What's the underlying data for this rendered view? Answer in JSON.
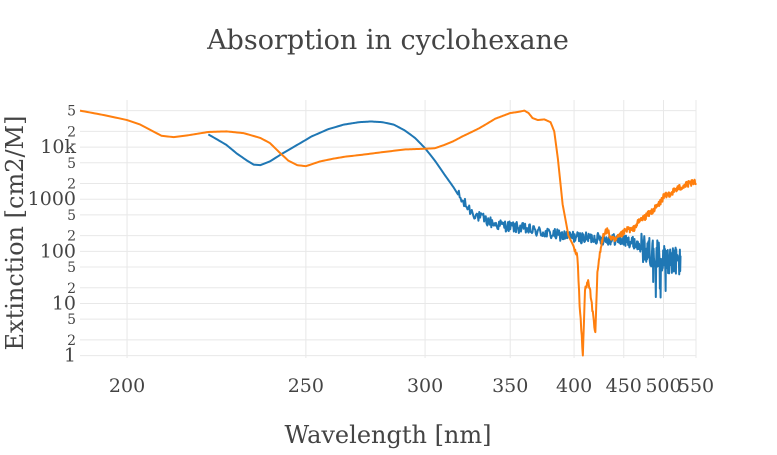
{
  "chart_data": {
    "type": "line",
    "title": "Absorption in cyclohexane",
    "xlabel": "Wavelength [nm]",
    "ylabel": "Extinction [cm2/M]",
    "x_scale": "reciprocal",
    "y_scale": "log",
    "xlim": [
      190,
      550
    ],
    "ylim": [
      0.9,
      80000
    ],
    "x_ticks": [
      "200",
      "250",
      "300",
      "350",
      "400",
      "450",
      "500",
      "550"
    ],
    "y_major_ticks": [
      "1",
      "10",
      "100",
      "1000",
      "10k"
    ],
    "y_minor_ticks": [
      "2",
      "5",
      "2",
      "5",
      "2",
      "5",
      "2",
      "5",
      "2",
      "5"
    ],
    "grid": true,
    "legend": "none",
    "colors": {
      "series_1": "#1f77b4",
      "series_2": "#ff7f0e"
    },
    "series": [
      {
        "color": "#1f77b4",
        "noisy_from_nm": 318,
        "points": [
          [
            220,
            17500
          ],
          [
            225,
            11000
          ],
          [
            228,
            7500
          ],
          [
            231,
            5500
          ],
          [
            233,
            4600
          ],
          [
            235,
            4500
          ],
          [
            238,
            5300
          ],
          [
            242,
            7500
          ],
          [
            247,
            11000
          ],
          [
            252,
            16000
          ],
          [
            258,
            22000
          ],
          [
            264,
            27000
          ],
          [
            270,
            30000
          ],
          [
            275,
            31000
          ],
          [
            280,
            30000
          ],
          [
            285,
            27000
          ],
          [
            290,
            21000
          ],
          [
            295,
            15000
          ],
          [
            300,
            9500
          ],
          [
            305,
            5500
          ],
          [
            310,
            3000
          ],
          [
            315,
            1700
          ],
          [
            320,
            900
          ],
          [
            325,
            600
          ],
          [
            330,
            450
          ],
          [
            340,
            330
          ],
          [
            350,
            300
          ],
          [
            360,
            270
          ],
          [
            370,
            240
          ],
          [
            380,
            215
          ],
          [
            390,
            200
          ],
          [
            400,
            190
          ],
          [
            410,
            180
          ],
          [
            420,
            180
          ],
          [
            430,
            170
          ],
          [
            440,
            170
          ],
          [
            450,
            160
          ],
          [
            460,
            150
          ],
          [
            470,
            120
          ],
          [
            480,
            100
          ],
          [
            490,
            90
          ],
          [
            500,
            75
          ],
          [
            510,
            70
          ],
          [
            520,
            65
          ],
          [
            525,
            60
          ]
        ]
      },
      {
        "color": "#ff7f0e",
        "noisy_from_nm": 400,
        "points": [
          [
            190,
            50000
          ],
          [
            195,
            41000
          ],
          [
            200,
            33000
          ],
          [
            203,
            27000
          ],
          [
            206,
            20000
          ],
          [
            208,
            16500
          ],
          [
            211,
            15500
          ],
          [
            215,
            17000
          ],
          [
            220,
            19500
          ],
          [
            225,
            20000
          ],
          [
            230,
            18500
          ],
          [
            235,
            15000
          ],
          [
            238,
            12000
          ],
          [
            241,
            8000
          ],
          [
            244,
            5500
          ],
          [
            247,
            4500
          ],
          [
            250,
            4300
          ],
          [
            255,
            5300
          ],
          [
            260,
            6000
          ],
          [
            265,
            6600
          ],
          [
            270,
            7000
          ],
          [
            280,
            8000
          ],
          [
            290,
            9000
          ],
          [
            300,
            9300
          ],
          [
            305,
            9500
          ],
          [
            310,
            11000
          ],
          [
            315,
            13000
          ],
          [
            320,
            16000
          ],
          [
            330,
            23000
          ],
          [
            340,
            35000
          ],
          [
            350,
            45000
          ],
          [
            355,
            47000
          ],
          [
            360,
            50000
          ],
          [
            363,
            45000
          ],
          [
            366,
            36000
          ],
          [
            370,
            33000
          ],
          [
            375,
            34000
          ],
          [
            380,
            30000
          ],
          [
            383,
            20000
          ],
          [
            386,
            6000
          ],
          [
            390,
            800
          ],
          [
            395,
            200
          ],
          [
            400,
            120
          ],
          [
            403,
            80
          ],
          [
            405,
            10
          ],
          [
            408,
            1.0
          ],
          [
            410,
            18
          ],
          [
            413,
            30
          ],
          [
            416,
            12
          ],
          [
            418,
            5
          ],
          [
            420,
            2.5
          ],
          [
            422,
            40
          ],
          [
            425,
            100
          ],
          [
            428,
            220
          ],
          [
            432,
            250
          ],
          [
            436,
            180
          ],
          [
            440,
            160
          ],
          [
            445,
            190
          ],
          [
            450,
            230
          ],
          [
            455,
            270
          ],
          [
            460,
            250
          ],
          [
            465,
            330
          ],
          [
            470,
            400
          ],
          [
            475,
            450
          ],
          [
            480,
            520
          ],
          [
            485,
            600
          ],
          [
            490,
            700
          ],
          [
            495,
            850
          ],
          [
            500,
            1100
          ],
          [
            510,
            1300
          ],
          [
            520,
            1600
          ],
          [
            530,
            1800
          ],
          [
            540,
            2000
          ],
          [
            550,
            2100
          ]
        ]
      }
    ]
  }
}
